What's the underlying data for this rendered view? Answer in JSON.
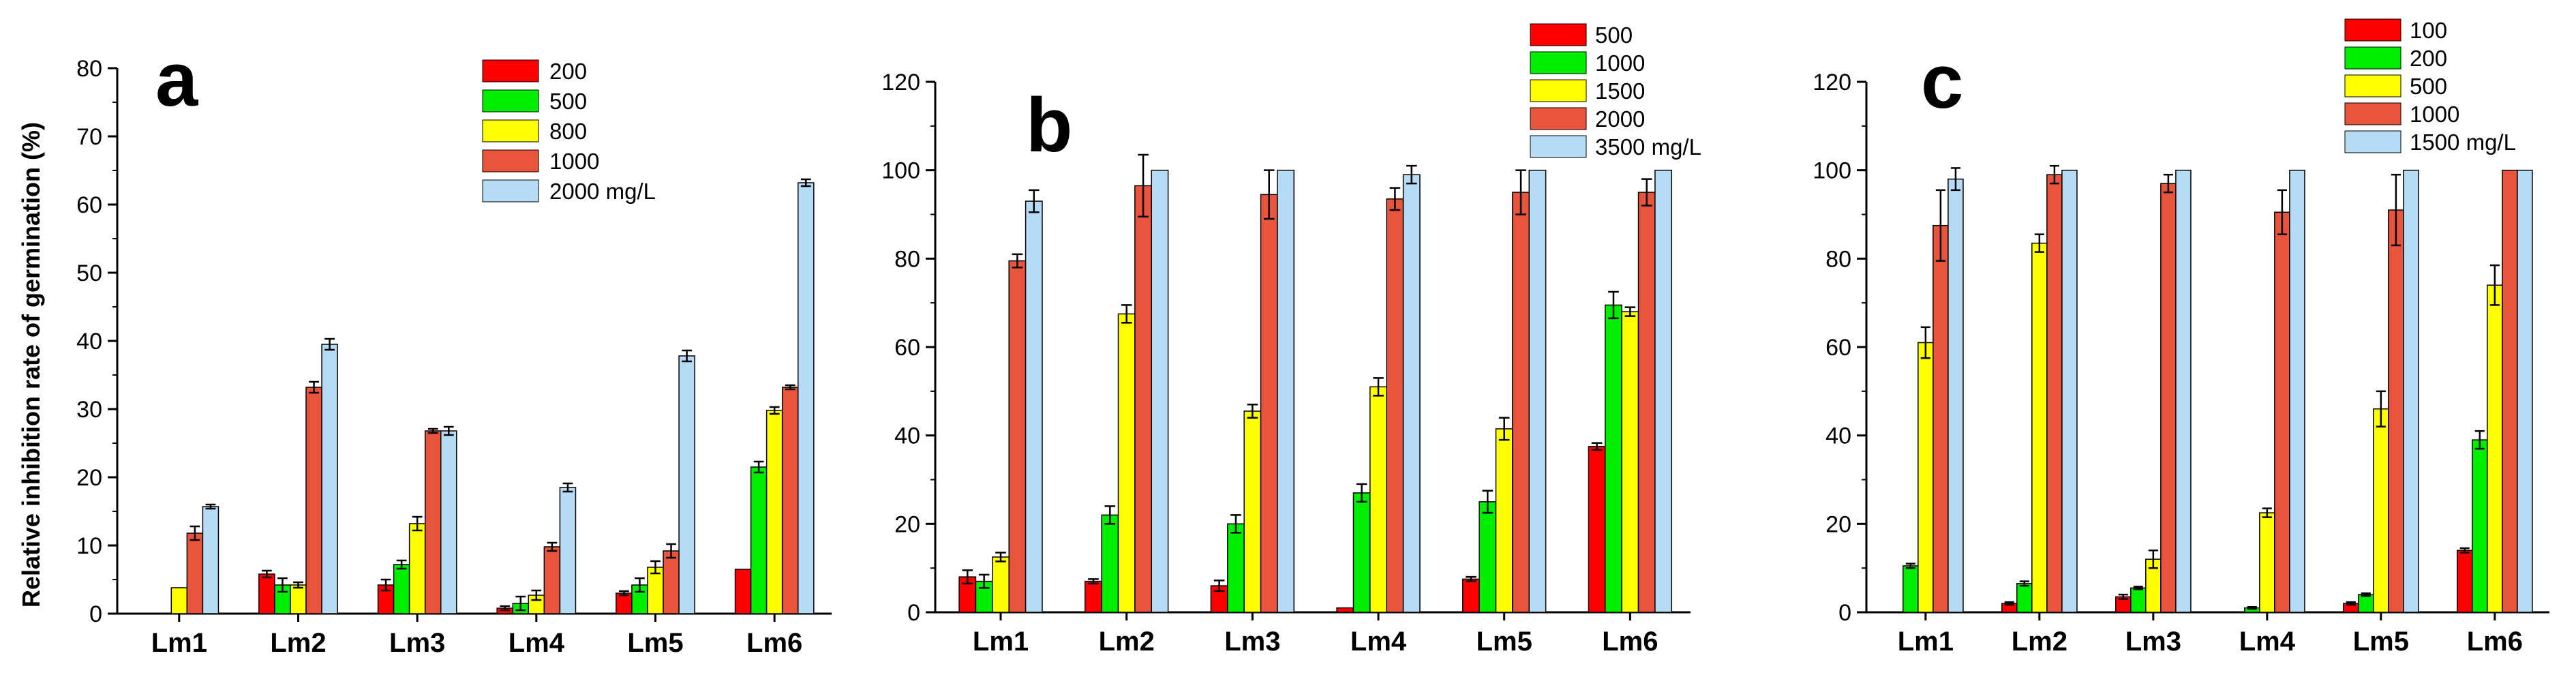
{
  "chart_data": [
    {
      "type": "bar",
      "panel_label": "a",
      "ylabel": "Relative inhibition rate of germination (%)",
      "xlabel": "",
      "ylim": [
        0,
        80
      ],
      "yticks": [
        "0",
        "10",
        "20",
        "30",
        "40",
        "50",
        "60",
        "70",
        "80"
      ],
      "categories": [
        "Lm1",
        "Lm2",
        "Lm3",
        "Lm4",
        "Lm5",
        "Lm6"
      ],
      "legend_position": "top-right",
      "series": [
        {
          "name": "200",
          "color": "#ff0000",
          "values": [
            0,
            5.8,
            4.2,
            0.8,
            3.0,
            6.5
          ],
          "errors": [
            0,
            0.5,
            0.8,
            0.3,
            0.3,
            0
          ]
        },
        {
          "name": "500",
          "color": "#00ee00",
          "values": [
            0,
            4.2,
            7.2,
            1.5,
            4.2,
            21.5
          ],
          "errors": [
            0,
            1.0,
            0.6,
            1.0,
            1.0,
            0.8
          ]
        },
        {
          "name": "800",
          "color": "#ffff00",
          "values": [
            3.8,
            4.2,
            13.2,
            2.7,
            6.8,
            29.8
          ],
          "errors": [
            0,
            0.4,
            1.0,
            0.7,
            0.9,
            0.5
          ]
        },
        {
          "name": "1000",
          "color": "#e8543c",
          "values": [
            11.8,
            33.2,
            26.8,
            9.8,
            9.2,
            33.2
          ],
          "errors": [
            1.0,
            0.8,
            0.3,
            0.6,
            1.0,
            0.3
          ]
        },
        {
          "name": "2000 mg/L",
          "color": "#b6dcf5",
          "values": [
            15.7,
            39.5,
            26.8,
            18.5,
            37.8,
            63.2
          ],
          "errors": [
            0.3,
            0.8,
            0.6,
            0.6,
            0.8,
            0.5
          ]
        }
      ]
    },
    {
      "type": "bar",
      "panel_label": "b",
      "ylabel": "",
      "xlabel": "",
      "ylim": [
        0,
        120
      ],
      "yticks": [
        "0",
        "20",
        "40",
        "60",
        "80",
        "100",
        "120"
      ],
      "categories": [
        "Lm1",
        "Lm2",
        "Lm3",
        "Lm4",
        "Lm5",
        "Lm6"
      ],
      "legend_position": "top-right",
      "series": [
        {
          "name": "500",
          "color": "#ff0000",
          "values": [
            8.0,
            7.0,
            6.0,
            1.0,
            7.5,
            37.5
          ],
          "errors": [
            1.5,
            0.5,
            1.2,
            0,
            0.5,
            0.8
          ]
        },
        {
          "name": "1000",
          "color": "#00ee00",
          "values": [
            7.0,
            22.0,
            20.0,
            27.0,
            25.0,
            69.5
          ],
          "errors": [
            1.5,
            2.0,
            2.0,
            2.0,
            2.5,
            3.0
          ]
        },
        {
          "name": "1500",
          "color": "#ffff00",
          "values": [
            12.5,
            67.5,
            45.5,
            51.0,
            41.5,
            68.0
          ],
          "errors": [
            1.0,
            2.0,
            1.5,
            2.0,
            2.5,
            1.0
          ]
        },
        {
          "name": "2000",
          "color": "#e8543c",
          "values": [
            79.5,
            96.5,
            94.5,
            93.5,
            95.0,
            95.0
          ],
          "errors": [
            1.5,
            7.0,
            5.5,
            2.5,
            5.0,
            3.0
          ]
        },
        {
          "name": "3500 mg/L",
          "color": "#b6dcf5",
          "values": [
            93.0,
            100,
            100,
            99.0,
            100,
            100
          ],
          "errors": [
            2.5,
            0,
            0,
            2.0,
            0,
            0
          ]
        }
      ]
    },
    {
      "type": "bar",
      "panel_label": "c",
      "ylabel": "",
      "xlabel": "",
      "ylim": [
        0,
        120
      ],
      "yticks": [
        "0",
        "20",
        "40",
        "60",
        "80",
        "100",
        "120"
      ],
      "categories": [
        "Lm1",
        "Lm2",
        "Lm3",
        "Lm4",
        "Lm5",
        "Lm6"
      ],
      "legend_position": "top-right",
      "series": [
        {
          "name": "100",
          "color": "#ff0000",
          "values": [
            0,
            2.0,
            3.5,
            0,
            2.0,
            14.0
          ],
          "errors": [
            0,
            0.3,
            0.5,
            0,
            0.3,
            0.5
          ]
        },
        {
          "name": "200",
          "color": "#00ee00",
          "values": [
            10.5,
            6.5,
            5.5,
            1.0,
            4.0,
            39.0
          ],
          "errors": [
            0.5,
            0.5,
            0.3,
            0.2,
            0.3,
            2.0
          ]
        },
        {
          "name": "500",
          "color": "#ffff00",
          "values": [
            61.0,
            83.5,
            12.0,
            22.5,
            46.0,
            74.0
          ],
          "errors": [
            3.5,
            2.0,
            2.0,
            1.0,
            4.0,
            4.5
          ]
        },
        {
          "name": "1000",
          "color": "#e8543c",
          "values": [
            87.5,
            99.0,
            97.0,
            90.5,
            91.0,
            100
          ],
          "errors": [
            8.0,
            2.0,
            2.0,
            5.0,
            8.0,
            0
          ]
        },
        {
          "name": "1500 mg/L",
          "color": "#b6dcf5",
          "values": [
            98.0,
            100,
            100,
            100,
            100,
            100
          ],
          "errors": [
            2.5,
            0,
            0,
            0,
            0,
            0
          ]
        }
      ]
    }
  ]
}
